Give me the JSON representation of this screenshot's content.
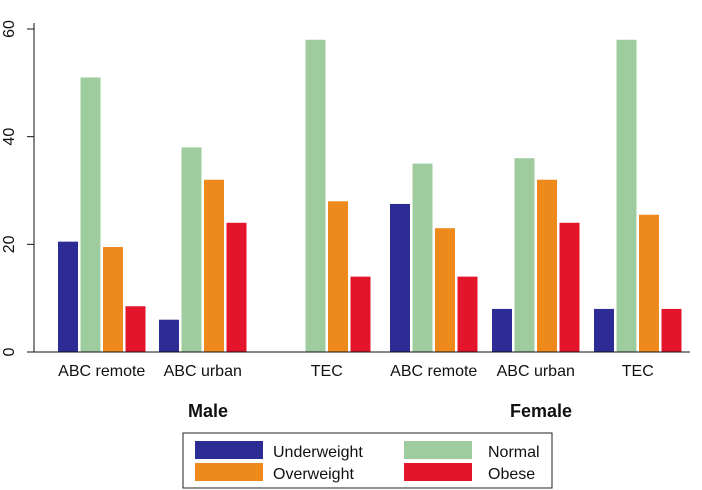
{
  "chart_data": {
    "type": "bar",
    "groups": [
      {
        "name": "Male",
        "categories": [
          "ABC remote",
          "ABC urban",
          "TEC"
        ]
      },
      {
        "name": "Female",
        "categories": [
          "ABC remote",
          "ABC urban",
          "TEC"
        ]
      }
    ],
    "categories": [
      "ABC remote",
      "ABC urban",
      "TEC",
      "ABC remote",
      "ABC urban",
      "TEC"
    ],
    "series": [
      {
        "name": "Underweight",
        "color": "#2d2b94",
        "values": [
          20.5,
          6,
          0,
          27.5,
          8,
          8
        ]
      },
      {
        "name": "Normal",
        "color": "#9fcc9f",
        "values": [
          51,
          38,
          58,
          35,
          36,
          58
        ]
      },
      {
        "name": "Overweight",
        "color": "#ee8a1c",
        "values": [
          19.5,
          32,
          28,
          23,
          32,
          25.5
        ]
      },
      {
        "name": "Obese",
        "color": "#e4142a",
        "values": [
          8.5,
          24,
          14,
          14,
          24,
          8
        ]
      }
    ],
    "ylim": [
      0,
      60
    ],
    "yticks": [
      0,
      20,
      40,
      60
    ],
    "ytick_labels": [
      "0",
      "20",
      "40",
      "60"
    ],
    "grid": false,
    "legend_position": "bottom-center",
    "title": "",
    "xlabel": "",
    "ylabel": ""
  }
}
